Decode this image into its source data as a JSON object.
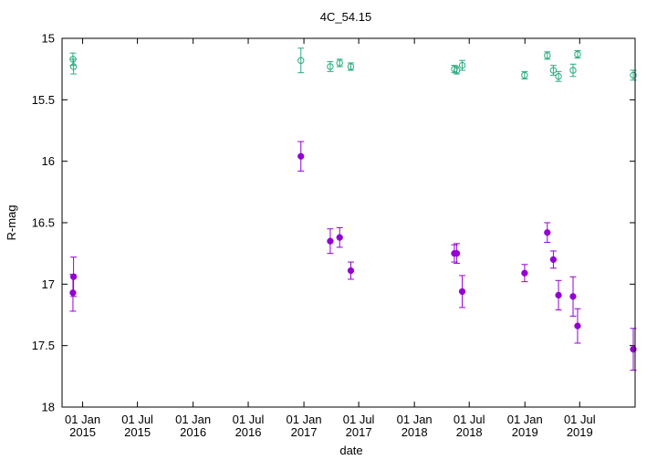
{
  "chart_data": {
    "type": "scatter",
    "title": "4C_54.15",
    "xlabel": "date",
    "ylabel": "R-mag",
    "xlim": [
      "2014-10-25",
      "2019-12-31"
    ],
    "ylim": [
      18,
      15
    ],
    "y_reversed": true,
    "grid": false,
    "y_ticks": [
      "15",
      "15.5",
      "16",
      "16.5",
      "17",
      "17.5",
      "18"
    ],
    "y_tick_values": [
      15,
      15.5,
      16,
      16.5,
      17,
      17.5,
      18
    ],
    "x_ticks": [
      {
        "date": "2015-01-01",
        "line1": "01 Jan",
        "line2": "2015"
      },
      {
        "date": "2015-07-01",
        "line1": "01 Jul",
        "line2": "2015"
      },
      {
        "date": "2016-01-01",
        "line1": "01 Jan",
        "line2": "2016"
      },
      {
        "date": "2016-07-01",
        "line1": "01 Jul",
        "line2": "2016"
      },
      {
        "date": "2017-01-01",
        "line1": "01 Jan",
        "line2": "2017"
      },
      {
        "date": "2017-07-01",
        "line1": "01 Jul",
        "line2": "2017"
      },
      {
        "date": "2018-01-01",
        "line1": "01 Jan",
        "line2": "2018"
      },
      {
        "date": "2018-07-01",
        "line1": "01 Jul",
        "line2": "2018"
      },
      {
        "date": "2019-01-01",
        "line1": "01 Jan",
        "line2": "2019"
      },
      {
        "date": "2019-07-01",
        "line1": "01 Jul",
        "line2": "2019"
      }
    ],
    "series": [
      {
        "marker": "open-circle",
        "color": "#2aab80",
        "points": [
          {
            "x": "2014-11-30",
            "y": 15.17,
            "err": 0.05
          },
          {
            "x": "2014-12-02",
            "y": 15.23,
            "err": 0.06
          },
          {
            "x": "2016-12-22",
            "y": 15.18,
            "err": 0.1
          },
          {
            "x": "2017-03-29",
            "y": 15.23,
            "err": 0.04
          },
          {
            "x": "2017-04-29",
            "y": 15.2,
            "err": 0.03
          },
          {
            "x": "2017-06-05",
            "y": 15.23,
            "err": 0.03
          },
          {
            "x": "2018-05-13",
            "y": 15.25,
            "err": 0.03
          },
          {
            "x": "2018-05-21",
            "y": 15.26,
            "err": 0.03
          },
          {
            "x": "2018-06-08",
            "y": 15.22,
            "err": 0.04
          },
          {
            "x": "2018-12-31",
            "y": 15.3,
            "err": 0.03
          },
          {
            "x": "2019-03-16",
            "y": 15.14,
            "err": 0.03
          },
          {
            "x": "2019-04-05",
            "y": 15.26,
            "err": 0.04
          },
          {
            "x": "2019-04-22",
            "y": 15.31,
            "err": 0.04
          },
          {
            "x": "2019-06-09",
            "y": 15.26,
            "err": 0.05
          },
          {
            "x": "2019-06-24",
            "y": 15.13,
            "err": 0.03
          },
          {
            "x": "2019-12-25",
            "y": 15.3,
            "err": 0.04
          }
        ]
      },
      {
        "marker": "filled-circle",
        "color": "#9400d3",
        "points": [
          {
            "x": "2014-11-30",
            "y": 17.07,
            "err": 0.15
          },
          {
            "x": "2014-12-02",
            "y": 16.94,
            "err": 0.16
          },
          {
            "x": "2016-12-22",
            "y": 15.96,
            "err": 0.12
          },
          {
            "x": "2017-03-29",
            "y": 16.65,
            "err": 0.1
          },
          {
            "x": "2017-04-29",
            "y": 16.62,
            "err": 0.08
          },
          {
            "x": "2017-06-05",
            "y": 16.89,
            "err": 0.07
          },
          {
            "x": "2018-05-13",
            "y": 16.75,
            "err": 0.07
          },
          {
            "x": "2018-05-21",
            "y": 16.75,
            "err": 0.08
          },
          {
            "x": "2018-06-08",
            "y": 17.06,
            "err": 0.13
          },
          {
            "x": "2018-12-31",
            "y": 16.91,
            "err": 0.07
          },
          {
            "x": "2019-03-16",
            "y": 16.58,
            "err": 0.08
          },
          {
            "x": "2019-04-05",
            "y": 16.8,
            "err": 0.07
          },
          {
            "x": "2019-04-22",
            "y": 17.09,
            "err": 0.12
          },
          {
            "x": "2019-06-09",
            "y": 17.1,
            "err": 0.16
          },
          {
            "x": "2019-06-24",
            "y": 17.34,
            "err": 0.14
          },
          {
            "x": "2019-12-25",
            "y": 17.53,
            "err": 0.17
          }
        ]
      }
    ]
  }
}
